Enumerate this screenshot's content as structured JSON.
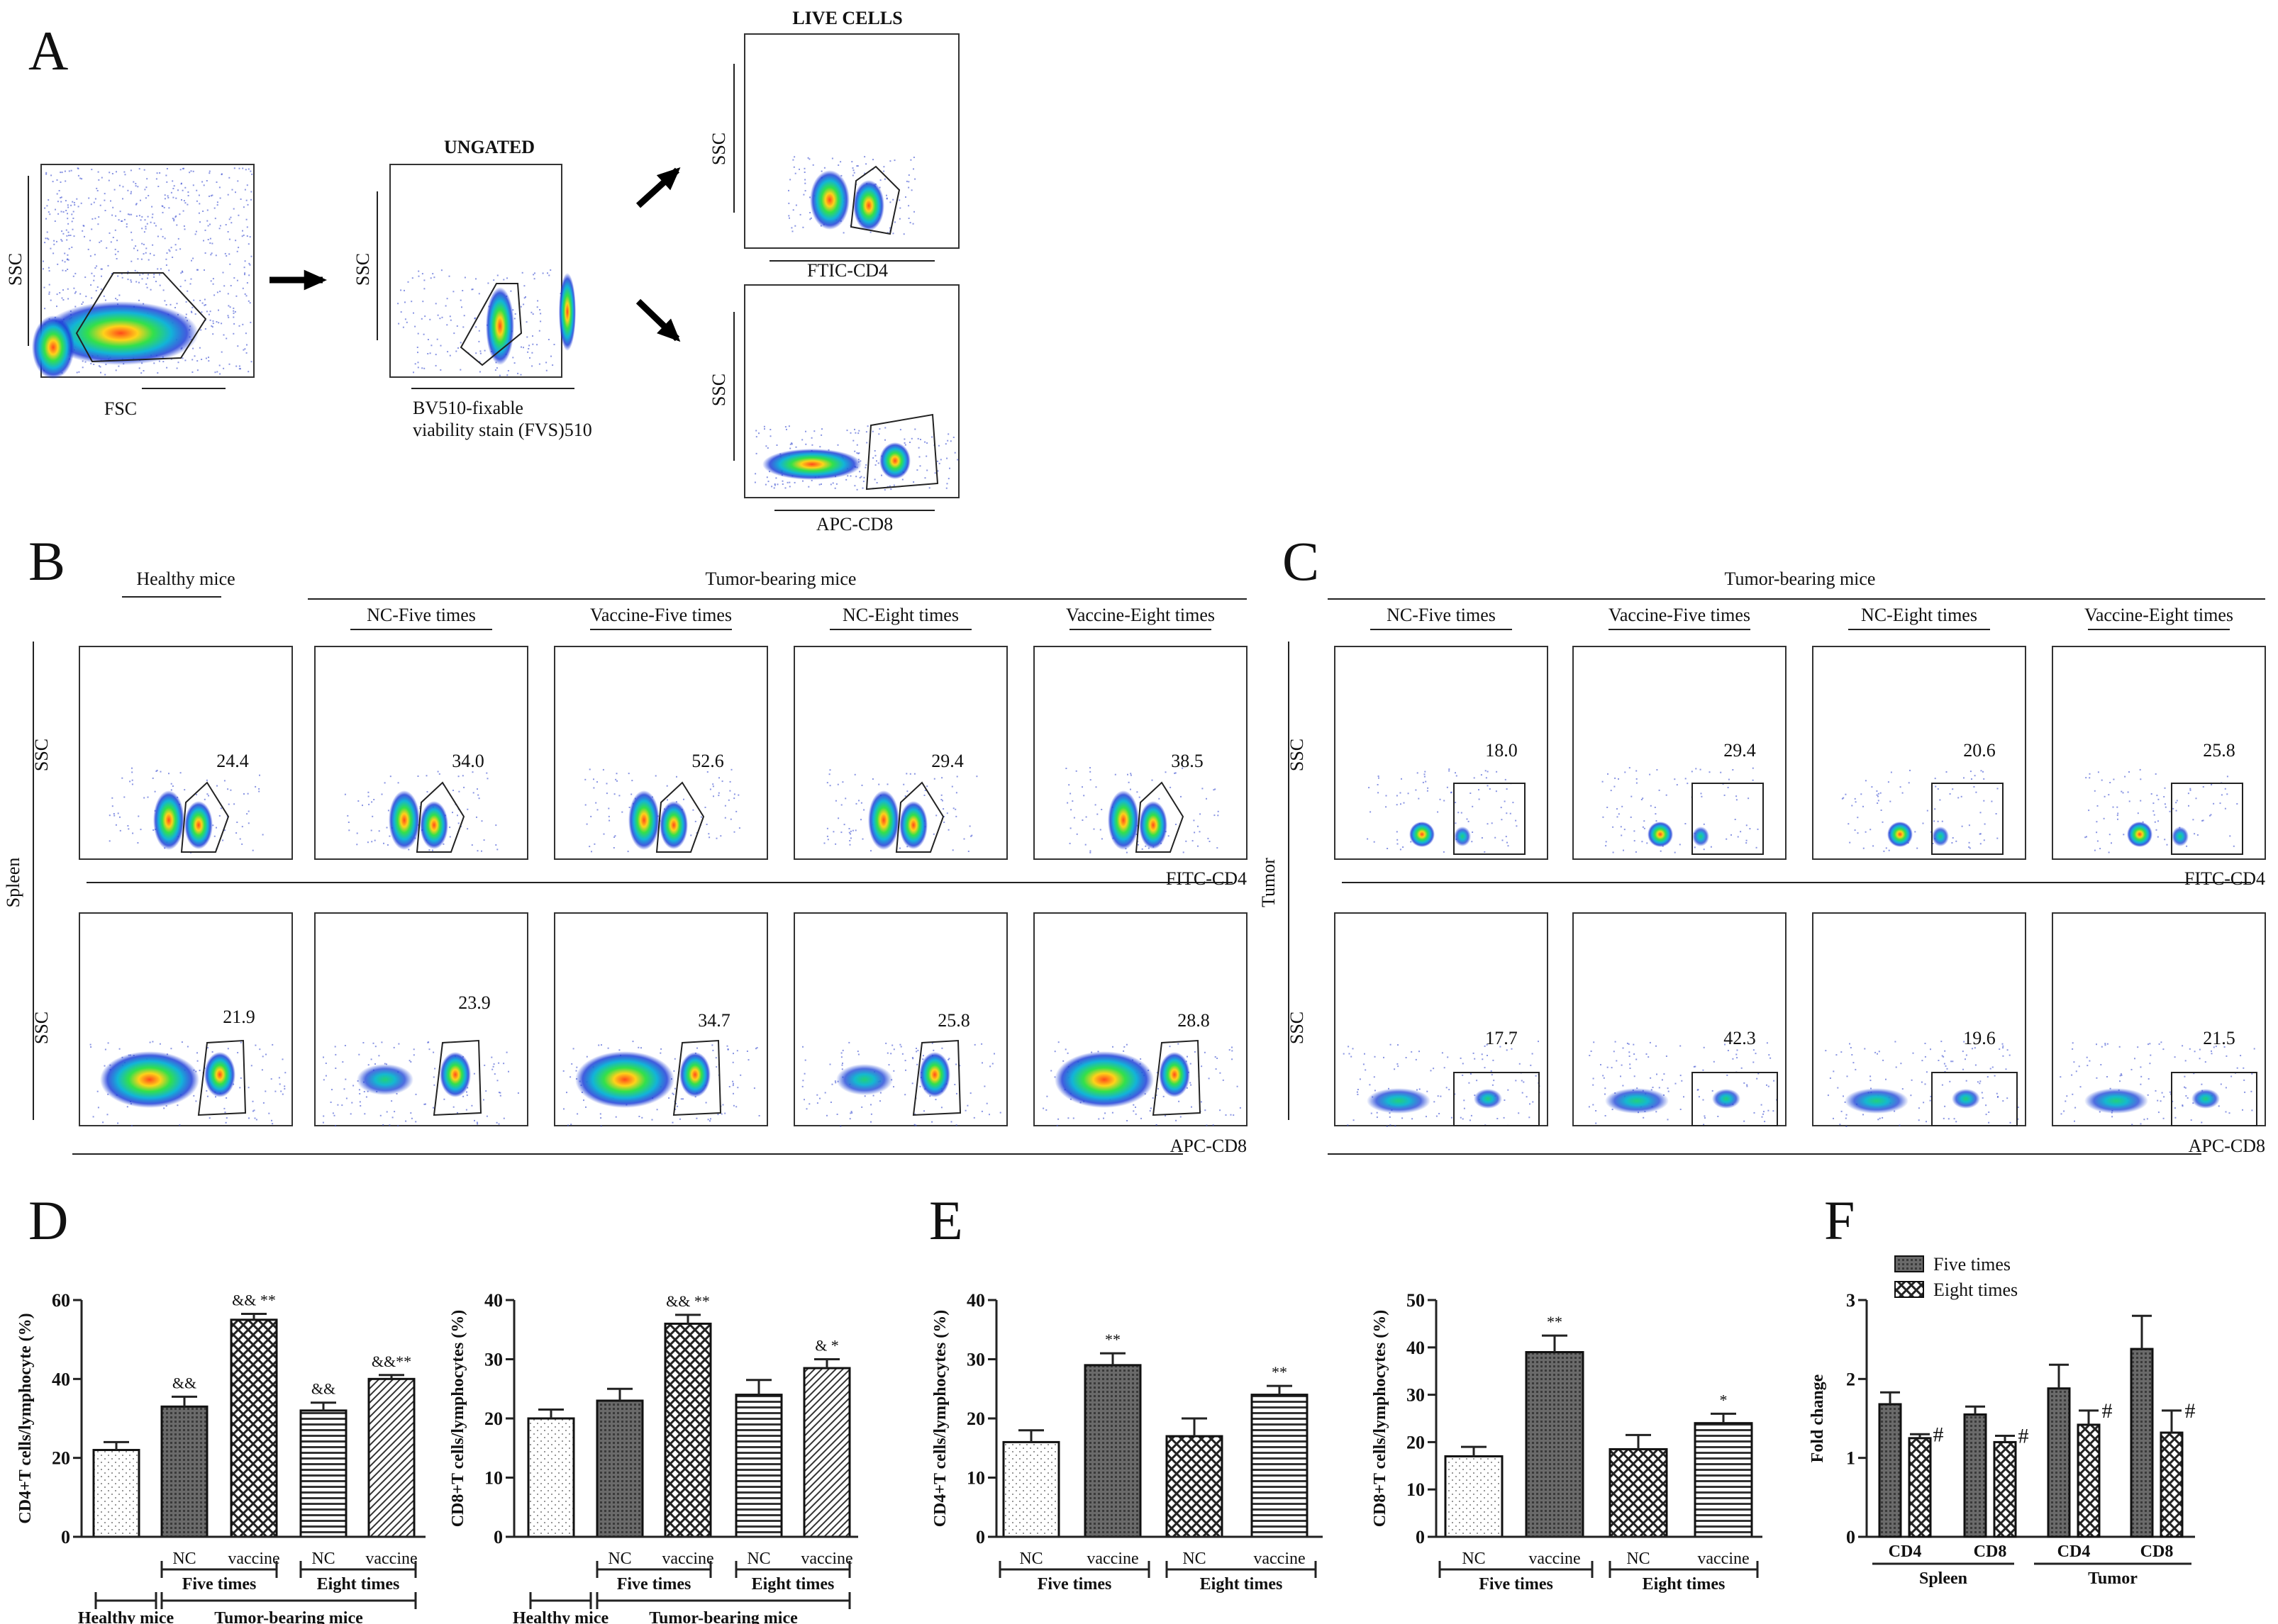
{
  "panel_letters": {
    "A": "A",
    "B": "B",
    "C": "C",
    "D": "D",
    "E": "E",
    "F": "F"
  },
  "panel_a": {
    "title_ungated": "UNGATED",
    "title_live": "LIVE CELLS",
    "plot1": {
      "y": "SSC",
      "x": "FSC"
    },
    "plot2": {
      "y": "SSC",
      "x_line1": "BV510-fixable",
      "x_line2": "viability stain (FVS)510"
    },
    "plot3": {
      "y": "SSC",
      "x": "FTIC-CD4"
    },
    "plot4": {
      "y": "SSC",
      "x": "APC-CD8"
    }
  },
  "panel_b": {
    "healthy_label": "Healthy mice",
    "tumor_label": "Tumor-bearing mice",
    "groups": [
      "NC-Five times",
      "Vaccine-Five times",
      "NC-Eight times",
      "Vaccine-Eight times"
    ],
    "row_label": "Spleen",
    "y_label": "SSC",
    "x_label_top": "FITC-CD4",
    "x_label_bottom": "APC-CD8",
    "cd4_values": [
      "24.4",
      "34.0",
      "52.6",
      "29.4",
      "38.5"
    ],
    "cd8_values": [
      "21.9",
      "23.9",
      "34.7",
      "25.8",
      "28.8"
    ]
  },
  "panel_c": {
    "tumor_label": "Tumor-bearing mice",
    "groups": [
      "NC-Five times",
      "Vaccine-Five times",
      "NC-Eight times",
      "Vaccine-Eight times"
    ],
    "row_label": "Tumor",
    "y_label": "SSC",
    "x_label_top": "FITC-CD4",
    "x_label_bottom": "APC-CD8",
    "cd4_values": [
      "18.0",
      "29.4",
      "20.6",
      "25.8"
    ],
    "cd8_values": [
      "17.7",
      "42.3",
      "19.6",
      "21.5"
    ]
  },
  "chart_data": [
    {
      "id": "D-left",
      "type": "bar",
      "ylabel": "CD4+T cells/lymphocyte (%)",
      "ylim": [
        0,
        60
      ],
      "yticks": [
        0,
        20,
        40,
        60
      ],
      "categories": [
        "",
        "NC",
        "vaccine",
        "NC",
        "vaccine"
      ],
      "values": [
        22,
        33,
        55,
        32,
        40
      ],
      "errors": [
        2,
        2.5,
        1.5,
        2,
        1
      ],
      "annotations": [
        "",
        "&&",
        "&& **",
        "&&",
        "&&**"
      ],
      "group_labels": [
        "Five times",
        "Eight times"
      ],
      "bottom_labels": [
        "Healthy mice",
        "Tumor-bearing mice"
      ]
    },
    {
      "id": "D-right",
      "type": "bar",
      "ylabel": "CD8+T cells/lymphocytes (%)",
      "ylim": [
        0,
        40
      ],
      "yticks": [
        0,
        10,
        20,
        30,
        40
      ],
      "categories": [
        "",
        "NC",
        "vaccine",
        "NC",
        "vaccine"
      ],
      "values": [
        20,
        23,
        36,
        24,
        28.5
      ],
      "errors": [
        1.5,
        2,
        1.5,
        2.5,
        1.5
      ],
      "annotations": [
        "",
        "",
        "&& **",
        "",
        "& *"
      ],
      "group_labels": [
        "Five times",
        "Eight times"
      ],
      "bottom_labels": [
        "Healthy mice",
        "Tumor-bearing mice"
      ]
    },
    {
      "id": "E-left",
      "type": "bar",
      "ylabel": "CD4+T cells/lymphocytes (%)",
      "ylim": [
        0,
        40
      ],
      "yticks": [
        0,
        10,
        20,
        30,
        40
      ],
      "categories": [
        "NC",
        "vaccine",
        "NC",
        "vaccine"
      ],
      "values": [
        16,
        29,
        17,
        24
      ],
      "errors": [
        2,
        2,
        3,
        1.5
      ],
      "annotations": [
        "",
        "**",
        "",
        "**"
      ],
      "group_labels": [
        "Five times",
        "Eight times"
      ]
    },
    {
      "id": "E-right",
      "type": "bar",
      "ylabel": "CD8+T cells/lymphocytes (%)",
      "ylim": [
        0,
        50
      ],
      "yticks": [
        0,
        10,
        20,
        30,
        40,
        50
      ],
      "categories": [
        "NC",
        "vaccine",
        "NC",
        "vaccine"
      ],
      "values": [
        17,
        39,
        18.5,
        24
      ],
      "errors": [
        2,
        3.5,
        3,
        2
      ],
      "annotations": [
        "",
        "**",
        "",
        "*"
      ],
      "group_labels": [
        "Five times",
        "Eight times"
      ]
    },
    {
      "id": "F",
      "type": "bar",
      "ylabel": "Fold change",
      "ylim": [
        0,
        3
      ],
      "yticks": [
        0,
        1,
        2,
        3
      ],
      "categories": [
        "CD4",
        "CD8",
        "CD4",
        "CD8"
      ],
      "group_labels": [
        "Spleen",
        "Tumor"
      ],
      "legend": {
        "position": "top-left"
      },
      "series": [
        {
          "name": "Five times",
          "values": [
            1.68,
            1.55,
            1.88,
            2.38
          ],
          "errors": [
            0.15,
            0.1,
            0.3,
            0.42
          ]
        },
        {
          "name": "Eight times",
          "values": [
            1.25,
            1.2,
            1.42,
            1.32
          ],
          "errors": [
            0.05,
            0.08,
            0.18,
            0.28
          ]
        }
      ],
      "annotations": [
        "#",
        "#",
        "#",
        "#"
      ]
    }
  ]
}
